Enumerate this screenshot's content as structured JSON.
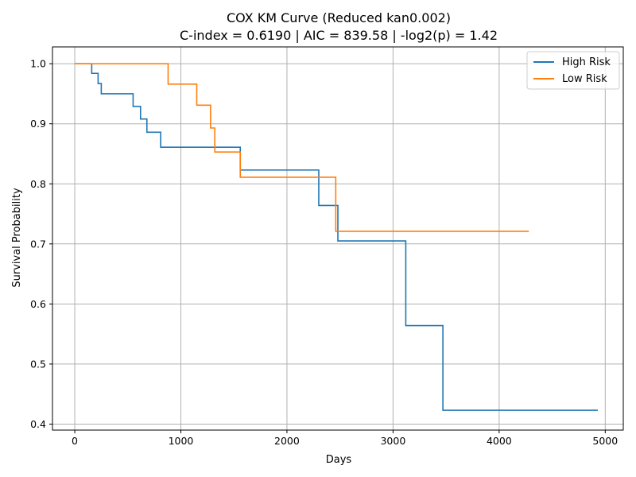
{
  "chart_data": {
    "type": "line",
    "title": "COX KM Curve (Reduced kan0.002)",
    "subtitle": "C-index = 0.6190 | AIC = 839.58 | -log2(p) = 1.42",
    "xlabel": "Days",
    "ylabel": "Survival Probability",
    "xlim": [
      -210,
      5170
    ],
    "ylim": [
      0.39,
      1.028
    ],
    "xticks": [
      0,
      1000,
      2000,
      3000,
      4000,
      5000
    ],
    "yticks": [
      0.4,
      0.5,
      0.6,
      0.7,
      0.8,
      0.9,
      1.0
    ],
    "xtick_labels": [
      "0",
      "1000",
      "2000",
      "3000",
      "4000",
      "5000"
    ],
    "ytick_labels": [
      "0.4",
      "0.5",
      "0.6",
      "0.7",
      "0.8",
      "0.9",
      "1.0"
    ],
    "grid": true,
    "legend_position": "top-right",
    "step": "post",
    "series": [
      {
        "name": "High Risk",
        "color": "#1f77b4",
        "x": [
          0,
          160,
          220,
          250,
          550,
          620,
          680,
          810,
          1560,
          2300,
          2480,
          3120,
          3470,
          4930
        ],
        "y": [
          1.0,
          0.984,
          0.967,
          0.95,
          0.929,
          0.908,
          0.886,
          0.861,
          0.823,
          0.764,
          0.705,
          0.564,
          0.423,
          0.423
        ]
      },
      {
        "name": "Low Risk",
        "color": "#ff7f0e",
        "x": [
          0,
          880,
          1150,
          1280,
          1320,
          1560,
          2460,
          4280
        ],
        "y": [
          1.0,
          0.966,
          0.931,
          0.893,
          0.853,
          0.811,
          0.721,
          0.721
        ]
      }
    ]
  }
}
